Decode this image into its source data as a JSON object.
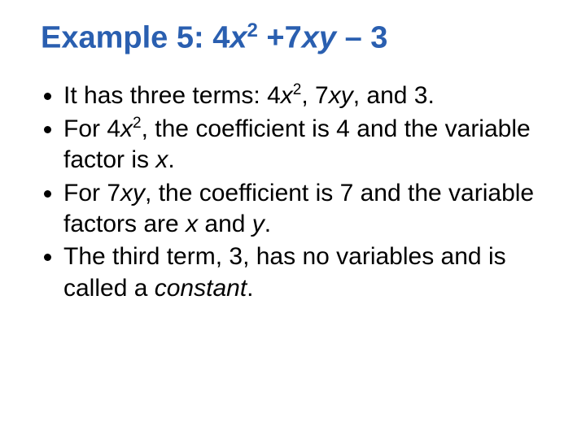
{
  "title": {
    "prefix": "Example 5: ",
    "coef1": "4",
    "var1": "x",
    "sup1": "2",
    "plus": " +",
    "coef2": "7",
    "var2": "xy",
    "tail": " – 3"
  },
  "bullets": [
    {
      "p0": "It has three terms: 4",
      "v0": "x",
      "s0": "2",
      "p1": ", 7",
      "v1": "xy",
      "p2": ", and 3."
    },
    {
      "p0": "For 4",
      "v0": "x",
      "s0": "2",
      "p1": ", the coefficient is 4 and the variable factor is ",
      "v1": "x",
      "p2": "."
    },
    {
      "p0": "For 7",
      "v0": "xy",
      "p1": ", the coefficient is 7 and the variable factors are ",
      "v1": "x",
      "p2": " and ",
      "v2": "y",
      "p3": "."
    },
    {
      "p0": "The third term, 3, has no variables and is called a ",
      "e0": "constant",
      "p1": "."
    }
  ],
  "style": {
    "title_color": "#2a5fb0",
    "body_color": "#000000",
    "background": "#ffffff",
    "title_fontsize": 38,
    "body_fontsize": 30
  }
}
